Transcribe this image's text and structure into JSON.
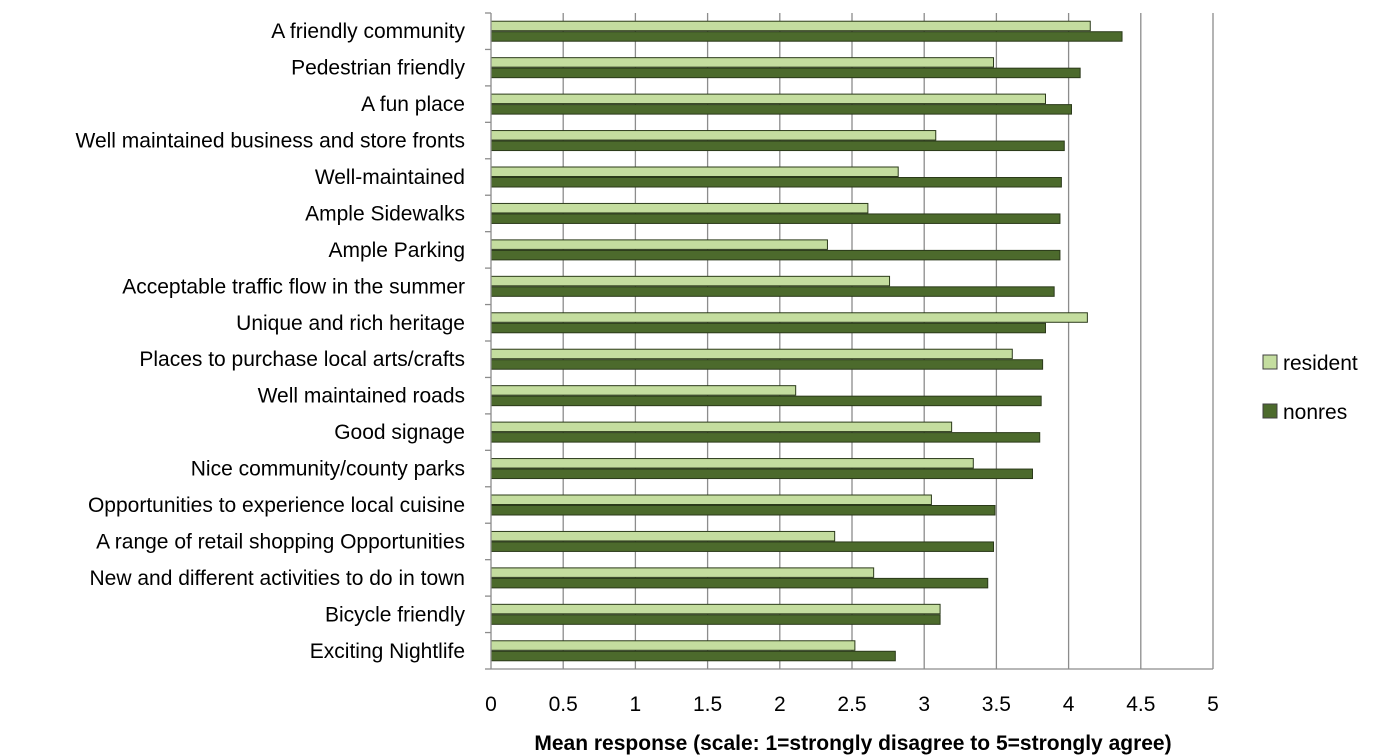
{
  "chart_data": {
    "type": "bar",
    "orientation": "horizontal",
    "title": "",
    "xlabel": "Mean response (scale:  1=strongly disagree to 5=strongly agree)",
    "ylabel": "",
    "xlim": [
      0,
      5
    ],
    "x_ticks": [
      "0",
      "0.5",
      "1",
      "1.5",
      "2",
      "2.5",
      "3",
      "3.5",
      "4",
      "4.5",
      "5"
    ],
    "grid": "vertical",
    "legend_position": "right",
    "categories": [
      "A friendly community",
      "Pedestrian friendly",
      "A fun place",
      "Well maintained business and store fronts",
      "Well-maintained",
      "Ample Sidewalks",
      "Ample Parking",
      "Acceptable traffic flow in the summer",
      "Unique and rich heritage",
      "Places to purchase local arts/crafts",
      "Well maintained roads",
      "Good signage",
      "Nice community/county parks",
      "Opportunities to experience local cuisine",
      "A range of retail shopping Opportunities",
      "New and different activities to do in town",
      "Bicycle friendly",
      "Exciting Nightlife"
    ],
    "series": [
      {
        "name": "resident",
        "color": "#c4dd9f",
        "values": [
          4.15,
          3.48,
          3.84,
          3.08,
          2.82,
          2.61,
          2.33,
          2.76,
          4.13,
          3.61,
          2.11,
          3.19,
          3.34,
          3.05,
          2.38,
          2.65,
          3.11,
          2.52
        ]
      },
      {
        "name": "nonres",
        "color": "#4c6a2c",
        "values": [
          4.37,
          4.08,
          4.02,
          3.97,
          3.95,
          3.94,
          3.94,
          3.9,
          3.84,
          3.82,
          3.81,
          3.8,
          3.75,
          3.49,
          3.48,
          3.44,
          3.11,
          2.8
        ]
      }
    ]
  }
}
